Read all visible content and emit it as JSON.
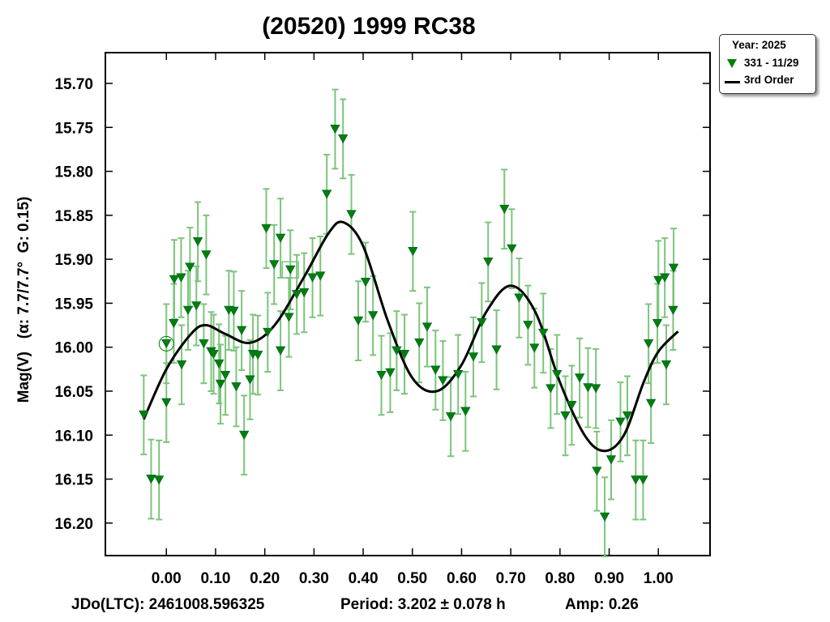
{
  "chart_data": {
    "type": "scatter",
    "title": "(20520) 1999 RC38",
    "xlabel": "",
    "ylabel": "Mag(V)   (α: 7.7/7.7°  G: 0.15)",
    "xlim": [
      -0.124,
      1.105
    ],
    "ylim": [
      16.237,
      15.665
    ],
    "y_inverted": true,
    "x_ticks": [
      "0.00",
      "0.10",
      "0.20",
      "0.30",
      "0.40",
      "0.50",
      "0.60",
      "0.70",
      "0.80",
      "0.90",
      "1.00"
    ],
    "y_ticks": [
      "15.70",
      "15.75",
      "15.80",
      "15.85",
      "15.90",
      "15.95",
      "16.00",
      "16.05",
      "16.10",
      "16.15",
      "16.20"
    ],
    "grid": false,
    "legend": {
      "placement": "outside-top-right",
      "title": "Year: 2025",
      "entries": [
        {
          "label": "331 - 11/29",
          "marker": "triangle-down",
          "color": "#008000"
        },
        {
          "label": "3rd Order",
          "marker": "line",
          "color": "#000000"
        }
      ]
    },
    "series": [
      {
        "name": "331 - 11/29",
        "color": "#008000",
        "errorbar_color": "#7cc47c",
        "error": 0.045,
        "x": [
          -0.046,
          -0.031,
          -0.015,
          0.0,
          0.0,
          0.015,
          0.016,
          0.03,
          0.031,
          0.044,
          0.048,
          0.061,
          0.064,
          0.076,
          0.081,
          0.091,
          0.096,
          0.107,
          0.11,
          0.12,
          0.127,
          0.137,
          0.142,
          0.153,
          0.158,
          0.17,
          0.176,
          0.186,
          0.203,
          0.206,
          0.219,
          0.232,
          0.232,
          0.249,
          0.252,
          0.265,
          0.28,
          0.297,
          0.313,
          0.326,
          0.343,
          0.359,
          0.376,
          0.39,
          0.405,
          0.42,
          0.437,
          0.455,
          0.468,
          0.484,
          0.501,
          0.514,
          0.53,
          0.547,
          0.562,
          0.578,
          0.593,
          0.608,
          0.624,
          0.641,
          0.654,
          0.671,
          0.687,
          0.702,
          0.717,
          0.735,
          0.748,
          0.766,
          0.781,
          0.794,
          0.811,
          0.824,
          0.84,
          0.857,
          0.873,
          0.875,
          0.891,
          0.904,
          0.923,
          0.937,
          0.954,
          0.969,
          0.98,
          0.985,
          0.998,
          1.0,
          1.013,
          1.016,
          1.03,
          1.031
        ],
        "y": [
          16.077,
          16.15,
          16.151,
          15.996,
          16.063,
          15.973,
          15.923,
          15.921,
          16.02,
          15.958,
          15.909,
          15.953,
          15.88,
          15.996,
          15.895,
          16.005,
          16.008,
          16.019,
          16.042,
          16.032,
          15.958,
          15.959,
          16.045,
          15.981,
          16.1,
          16.037,
          16.008,
          16.009,
          15.865,
          15.983,
          15.906,
          16.004,
          15.876,
          15.966,
          15.912,
          15.94,
          15.938,
          15.921,
          15.919,
          15.826,
          15.752,
          15.763,
          15.849,
          15.97,
          15.926,
          15.964,
          16.032,
          16.029,
          16.004,
          16.008,
          15.891,
          15.995,
          15.977,
          16.026,
          16.038,
          16.079,
          16.031,
          16.073,
          16.011,
          15.972,
          15.903,
          16.003,
          15.843,
          15.888,
          15.944,
          15.975,
          16.001,
          15.984,
          16.047,
          16.031,
          16.078,
          16.066,
          16.035,
          16.046,
          16.047,
          16.141,
          16.193,
          16.128,
          16.085,
          16.078,
          16.151,
          16.151,
          15.996,
          16.064,
          15.973,
          15.924,
          15.921,
          16.02,
          15.958,
          15.91
        ],
        "circled_index": 3,
        "boxed_index": 34
      },
      {
        "name": "3rd Order",
        "color": "#000000",
        "type": "line",
        "x": [
          -0.046,
          0.0,
          0.05,
          0.08,
          0.12,
          0.17,
          0.22,
          0.28,
          0.33,
          0.36,
          0.4,
          0.45,
          0.5,
          0.55,
          0.6,
          0.65,
          0.7,
          0.75,
          0.8,
          0.85,
          0.89,
          0.93,
          0.97,
          1.0,
          1.04
        ],
        "y": [
          16.082,
          16.025,
          15.985,
          15.975,
          15.985,
          15.995,
          15.975,
          15.92,
          15.87,
          15.858,
          15.885,
          15.97,
          16.035,
          16.05,
          16.02,
          15.96,
          15.93,
          15.96,
          16.04,
          16.1,
          16.118,
          16.1,
          16.04,
          16.005,
          15.982
        ]
      }
    ]
  },
  "footer": {
    "jd": "JDo(LTC): 2461008.596325",
    "period": "Period: 3.202 ± 0.078 h",
    "amp": "Amp: 0.26"
  }
}
